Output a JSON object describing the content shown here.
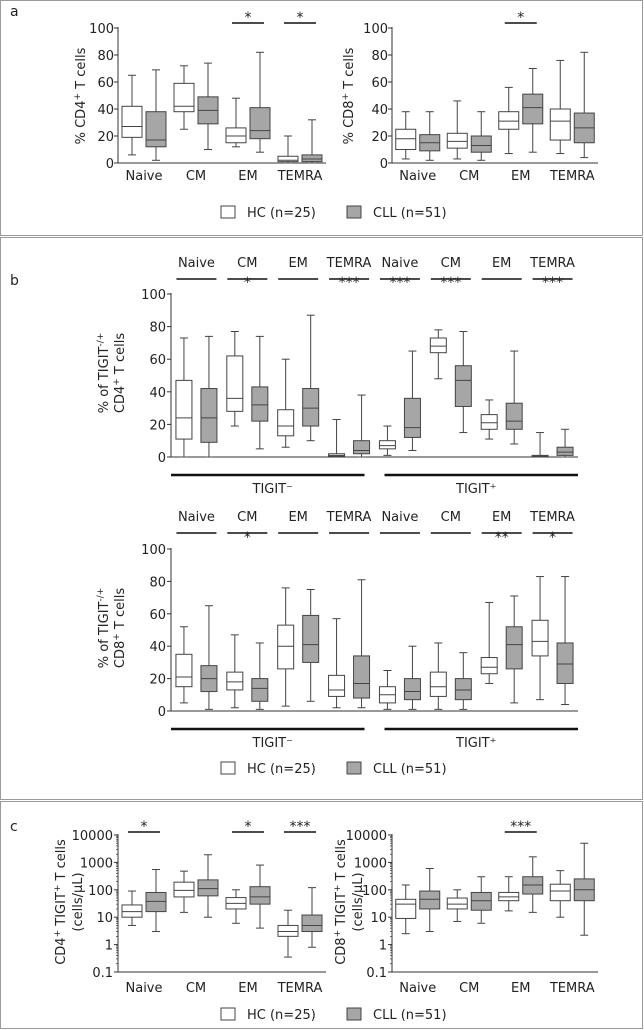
{
  "panels": {
    "a": {
      "letter": "a"
    },
    "b": {
      "letter": "b",
      "group_tigit_neg": "TIGIT⁻",
      "group_tigit_pos": "TIGIT⁺"
    },
    "c": {
      "letter": "c"
    }
  },
  "legend": {
    "hc": "HC (n=25)",
    "cll": "CLL (n=51)"
  },
  "colors": {
    "hc": "#ffffff",
    "cll": "#a6a6a6",
    "stroke": "#444444",
    "axis": "#333333"
  },
  "chart_data": [
    {
      "id": "a1",
      "type": "box",
      "panel": "a",
      "ylabel_main": "% CD4",
      "ylabel_sup": "+",
      "ylabel_tail": " T cells",
      "ylim": [
        0,
        100
      ],
      "yticks": [
        0,
        20,
        40,
        60,
        80,
        100
      ],
      "scale": "linear",
      "categories": [
        "Naive",
        "CM",
        "EM",
        "TEMRA"
      ],
      "sig": [
        "",
        "",
        "*",
        "*"
      ],
      "series": [
        {
          "name": "HC (n=25)",
          "boxes": [
            [
              6,
              19,
              27,
              42,
              65
            ],
            [
              25,
              38,
              42,
              59,
              72
            ],
            [
              12,
              15,
              20,
              26,
              48
            ],
            [
              0,
              1,
              2,
              5,
              20
            ]
          ]
        },
        {
          "name": "CLL (n=51)",
          "boxes": [
            [
              2,
              12,
              17,
              38,
              69
            ],
            [
              10,
              29,
              39,
              49,
              74
            ],
            [
              8,
              18,
              24,
              41,
              82
            ],
            [
              0,
              1,
              3,
              6,
              32
            ]
          ]
        }
      ]
    },
    {
      "id": "a2",
      "type": "box",
      "panel": "a",
      "ylabel_main": "% CD8",
      "ylabel_sup": "+",
      "ylabel_tail": " T cells",
      "ylim": [
        0,
        100
      ],
      "yticks": [
        0,
        20,
        40,
        60,
        80,
        100
      ],
      "scale": "linear",
      "categories": [
        "Naive",
        "CM",
        "EM",
        "TEMRA"
      ],
      "sig": [
        "",
        "",
        "*",
        ""
      ],
      "series": [
        {
          "name": "HC (n=25)",
          "boxes": [
            [
              3,
              10,
              18,
              25,
              38
            ],
            [
              3,
              11,
              16,
              22,
              46
            ],
            [
              7,
              25,
              31,
              38,
              56
            ],
            [
              7,
              17,
              31,
              40,
              76
            ]
          ]
        },
        {
          "name": "CLL (n=51)",
          "boxes": [
            [
              2,
              9,
              15,
              21,
              38
            ],
            [
              2,
              8,
              13,
              20,
              38
            ],
            [
              8,
              29,
              41,
              51,
              70
            ],
            [
              4,
              15,
              26,
              37,
              82
            ]
          ]
        }
      ]
    },
    {
      "id": "b1",
      "type": "box",
      "panel": "b",
      "ylabel_main": "% of TIGIT",
      "ylabel_sup": "-/+",
      "ylabel_line2": "CD4",
      "ylabel_sup2": "+",
      "ylabel_tail2": " T cells",
      "ylim": [
        0,
        100
      ],
      "yticks": [
        0,
        20,
        40,
        60,
        80,
        100
      ],
      "scale": "linear",
      "categories": [
        "Naive",
        "CM",
        "EM",
        "TEMRA",
        "Naive",
        "CM",
        "EM",
        "TEMRA"
      ],
      "sig": [
        "",
        "*",
        "",
        "***",
        "***",
        "***",
        "",
        "***"
      ],
      "series": [
        {
          "name": "HC (n=25)",
          "boxes": [
            [
              0,
              11,
              24,
              47,
              73
            ],
            [
              19,
              28,
              36,
              62,
              77
            ],
            [
              6,
              13,
              19,
              29,
              60
            ],
            [
              0,
              0.5,
              1,
              2,
              23
            ],
            [
              1,
              5,
              7,
              10,
              19
            ],
            [
              48,
              64,
              68,
              73,
              78
            ],
            [
              11,
              17,
              21,
              26,
              35
            ],
            [
              0,
              0.3,
              0.5,
              1,
              15
            ]
          ]
        },
        {
          "name": "CLL (n=51)",
          "boxes": [
            [
              0,
              9,
              24,
              42,
              74
            ],
            [
              5,
              22,
              32,
              43,
              74
            ],
            [
              10,
              19,
              30,
              42,
              87
            ],
            [
              0,
              2,
              4,
              10,
              38
            ],
            [
              4,
              12,
              18,
              36,
              65
            ],
            [
              15,
              31,
              47,
              56,
              77
            ],
            [
              8,
              17,
              22,
              33,
              65
            ],
            [
              0,
              1,
              3,
              6,
              17
            ]
          ]
        }
      ]
    },
    {
      "id": "b2",
      "type": "box",
      "panel": "b",
      "ylabel_main": "% of TIGIT",
      "ylabel_sup": "-/+",
      "ylabel_line2": "CD8",
      "ylabel_sup2": "+",
      "ylabel_tail2": " T cells",
      "ylim": [
        0,
        100
      ],
      "yticks": [
        0,
        20,
        40,
        60,
        80,
        100
      ],
      "scale": "linear",
      "categories": [
        "Naive",
        "CM",
        "EM",
        "TEMRA",
        "Naive",
        "CM",
        "EM",
        "TEMRA"
      ],
      "sig": [
        "",
        "*",
        "",
        "",
        "",
        "",
        "**",
        "*"
      ],
      "series": [
        {
          "name": "HC (n=25)",
          "boxes": [
            [
              5,
              15,
              21,
              35,
              52
            ],
            [
              2,
              13,
              18,
              24,
              47
            ],
            [
              3,
              26,
              40,
              53,
              76
            ],
            [
              2,
              9,
              13,
              22,
              57
            ],
            [
              1,
              5,
              10,
              15,
              25
            ],
            [
              1,
              9,
              15,
              24,
              42
            ],
            [
              17,
              23,
              27,
              33,
              67
            ],
            [
              7,
              34,
              43,
              56,
              83
            ]
          ]
        },
        {
          "name": "CLL (n=51)",
          "boxes": [
            [
              1,
              12,
              20,
              28,
              65
            ],
            [
              1,
              6,
              14,
              20,
              42
            ],
            [
              6,
              30,
              41,
              59,
              75
            ],
            [
              2,
              8,
              17,
              34,
              81
            ],
            [
              1,
              7,
              12,
              20,
              40
            ],
            [
              1,
              7,
              13,
              20,
              36
            ],
            [
              5,
              26,
              41,
              52,
              71
            ],
            [
              4,
              17,
              29,
              42,
              83
            ]
          ]
        }
      ]
    },
    {
      "id": "c1",
      "type": "box",
      "panel": "c",
      "ylabel_main": "CD4",
      "ylabel_sup": "+",
      "ylabel_tail": " TIGIT",
      "ylabel_sup_b": "+",
      "ylabel_tail_b": " T cells",
      "ylabel_line2": "(cells/μL)",
      "ylim": [
        0.1,
        10000
      ],
      "yticks": [
        0.1,
        1,
        10,
        100,
        1000,
        10000
      ],
      "ytick_labels": [
        "0.1",
        "1",
        "10",
        "100",
        "1000",
        "10000"
      ],
      "scale": "log",
      "categories": [
        "Naive",
        "CM",
        "EM",
        "TEMRA"
      ],
      "sig": [
        "*",
        "",
        "*",
        "***"
      ],
      "series": [
        {
          "name": "HC (n=25)",
          "boxes": [
            [
              5,
              10,
              16,
              28,
              90
            ],
            [
              15,
              55,
              95,
              190,
              480
            ],
            [
              6,
              20,
              32,
              52,
              100
            ],
            [
              0.35,
              2,
              3,
              5,
              18
            ]
          ]
        },
        {
          "name": "CLL (n=51)",
          "boxes": [
            [
              3,
              16,
              38,
              80,
              550
            ],
            [
              10,
              60,
              110,
              230,
              1900
            ],
            [
              4,
              30,
              55,
              130,
              800
            ],
            [
              0.8,
              3,
              5,
              12,
              120
            ]
          ]
        }
      ]
    },
    {
      "id": "c2",
      "type": "box",
      "panel": "c",
      "ylabel_main": "CD8",
      "ylabel_sup": "+",
      "ylabel_tail": " TIGIT",
      "ylabel_sup_b": "+",
      "ylabel_tail_b": " T cells",
      "ylabel_line2": "(cells/μL)",
      "ylim": [
        0.1,
        10000
      ],
      "yticks": [
        0.1,
        1,
        10,
        100,
        1000,
        10000
      ],
      "ytick_labels": [
        "0.1",
        "1",
        "10",
        "100",
        "1000",
        "10000"
      ],
      "scale": "log",
      "categories": [
        "Naive",
        "CM",
        "EM",
        "TEMRA"
      ],
      "sig": [
        "",
        "",
        "***",
        ""
      ],
      "series": [
        {
          "name": "HC (n=25)",
          "boxes": [
            [
              2.5,
              9,
              30,
              45,
              150
            ],
            [
              7,
              20,
              30,
              50,
              100
            ],
            [
              17,
              40,
              55,
              80,
              300
            ],
            [
              10,
              40,
              90,
              160,
              500
            ]
          ]
        },
        {
          "name": "CLL (n=51)",
          "boxes": [
            [
              3,
              20,
              45,
              90,
              600
            ],
            [
              6,
              18,
              40,
              80,
              300
            ],
            [
              15,
              70,
              150,
              300,
              1600
            ],
            [
              2.2,
              40,
              100,
              250,
              5000
            ]
          ]
        }
      ]
    }
  ]
}
